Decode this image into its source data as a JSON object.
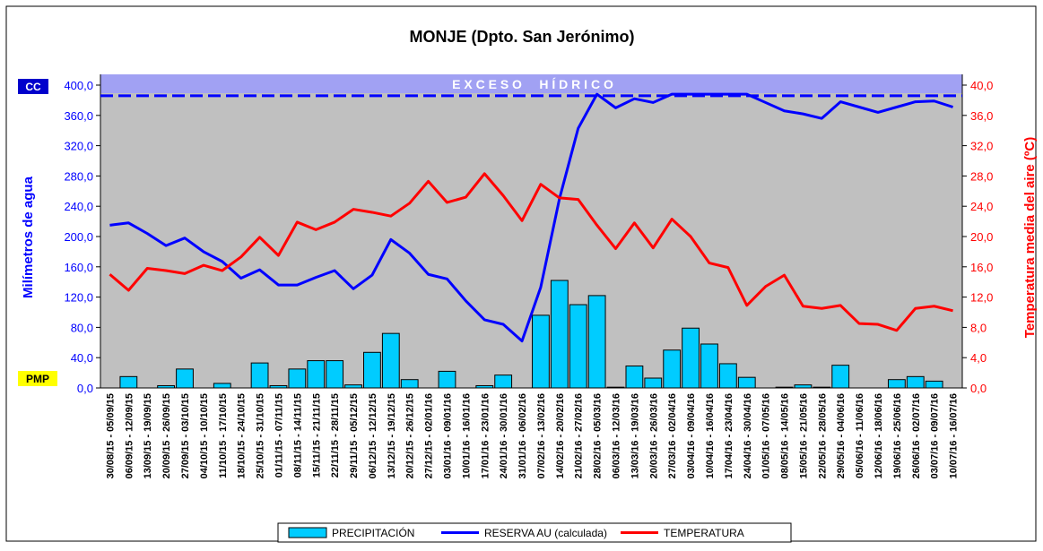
{
  "chart_data": {
    "type": "combo",
    "title": "MONJE (Dpto. San Jerónimo)",
    "y_axis_label": "Milímetros de agua",
    "y2_axis_label": "Temperatura media del aire (ºC)",
    "band_label": "E X C E S O     H Í D R I C O",
    "cc_label": "CC",
    "pmp_label": "PMP",
    "cc_line": 386,
    "categories": [
      "30/08/15 - 05/09/15",
      "06/09/15 - 12/09/15",
      "13/09/15 - 19/09/15",
      "20/09/15 - 26/09/15",
      "27/09/15 - 03/10/15",
      "04/10/15 - 10/10/15",
      "11/10/15 - 17/10/15",
      "18/10/15 - 24/10/15",
      "25/10/15 - 31/10/15",
      "01/11/15 - 07/11/15",
      "08/11/15 - 14/11/15",
      "15/11/15 - 21/11/15",
      "22/11/15 - 28/11/15",
      "29/11/15 - 05/12/15",
      "06/12/15 - 12/12/15",
      "13/12/15 - 19/12/15",
      "20/12/15 - 26/12/15",
      "27/12/15 - 02/01/16",
      "03/01/16 - 09/01/16",
      "10/01/16 - 16/01/16",
      "17/01/16 - 23/01/16",
      "24/01/16 - 30/01/16",
      "31/01/16 - 06/02/16",
      "07/02/16 - 13/02/16",
      "14/02/16 - 20/02/16",
      "21/02/16 - 27/02/16",
      "28/02/16 - 05/03/16",
      "06/03/16 - 12/03/16",
      "13/03/16 - 19/03/16",
      "20/03/16 - 26/03/16",
      "27/03/16 - 02/04/16",
      "03/04/16 - 09/04/16",
      "10/04/16 - 16/04/16",
      "17/04/16 - 23/04/16",
      "24/04/16 - 30/04/16",
      "01/05/16 - 07/05/16",
      "08/05/16 - 14/05/16",
      "15/05/16 - 21/05/16",
      "22/05/16 - 28/05/16",
      "29/05/16 - 04/06/16",
      "05/06/16 - 11/06/16",
      "12/06/16 - 18/06/16",
      "19/06/16 - 25/06/16",
      "26/06/16 - 02/07/16",
      "03/07/16 - 09/07/16",
      "10/07/16 - 16/07/16"
    ],
    "series": [
      {
        "name": "PRECIPITACIÓN",
        "kind": "bar",
        "color": "#00ccff",
        "values": [
          0,
          15,
          0,
          3,
          25,
          0,
          6,
          0,
          33,
          3,
          25,
          36,
          36,
          4,
          47,
          72,
          11,
          0,
          22,
          0,
          3,
          17,
          0,
          96,
          142,
          110,
          122,
          1,
          29,
          13,
          50,
          79,
          58,
          32,
          14,
          0,
          1,
          4,
          1,
          30,
          0,
          0,
          11,
          15,
          9,
          0
        ]
      },
      {
        "name": "RESERVA AU (calculada)",
        "kind": "line",
        "color": "#0000ff",
        "values": [
          215,
          218,
          204,
          188,
          198,
          180,
          167,
          145,
          156,
          136,
          136,
          146,
          155,
          131,
          149,
          196,
          178,
          150,
          144,
          115,
          90,
          84,
          62,
          133,
          250,
          343,
          388,
          370,
          382,
          377,
          388,
          388,
          388,
          388,
          388,
          377,
          366,
          362,
          356,
          378,
          371,
          364,
          371,
          378,
          379,
          371
        ]
      },
      {
        "name": "TEMPERATURA",
        "kind": "line",
        "color": "#ff0000",
        "axis": "y2",
        "values": [
          15.0,
          12.9,
          15.8,
          15.5,
          15.1,
          16.2,
          15.5,
          17.3,
          19.9,
          17.5,
          21.9,
          20.9,
          21.9,
          23.6,
          23.2,
          22.7,
          24.4,
          27.3,
          24.5,
          25.2,
          28.3,
          25.4,
          22.1,
          26.9,
          25.1,
          24.9,
          21.5,
          18.4,
          21.8,
          18.5,
          22.3,
          20.0,
          16.5,
          15.9,
          10.9,
          13.4,
          14.9,
          10.8,
          10.5,
          10.9,
          8.5,
          8.4,
          7.6,
          10.5,
          10.8,
          10.2
        ]
      }
    ],
    "ylim": [
      0,
      400
    ],
    "yticks": [
      {
        "value": 0,
        "label": "0,0"
      },
      {
        "value": 40,
        "label": "40,0"
      },
      {
        "value": 80,
        "label": "80,0"
      },
      {
        "value": 120,
        "label": "120,0"
      },
      {
        "value": 160,
        "label": "160,0"
      },
      {
        "value": 200,
        "label": "200,0"
      },
      {
        "value": 240,
        "label": "240,0"
      },
      {
        "value": 280,
        "label": "280,0"
      },
      {
        "value": 320,
        "label": "320,0"
      },
      {
        "value": 360,
        "label": "360,0"
      },
      {
        "value": 400,
        "label": "400,0"
      }
    ],
    "y2lim": [
      0,
      40
    ],
    "y2ticks": [
      {
        "value": 0,
        "label": "0,0"
      },
      {
        "value": 4,
        "label": "4,0"
      },
      {
        "value": 8,
        "label": "8,0"
      },
      {
        "value": 12,
        "label": "12,0"
      },
      {
        "value": 16,
        "label": "16,0"
      },
      {
        "value": 20,
        "label": "20,0"
      },
      {
        "value": 24,
        "label": "24,0"
      },
      {
        "value": 28,
        "label": "28,0"
      },
      {
        "value": 32,
        "label": "32,0"
      },
      {
        "value": 36,
        "label": "36,0"
      },
      {
        "value": 40,
        "label": "40,0"
      }
    ],
    "legend": "bottom"
  }
}
